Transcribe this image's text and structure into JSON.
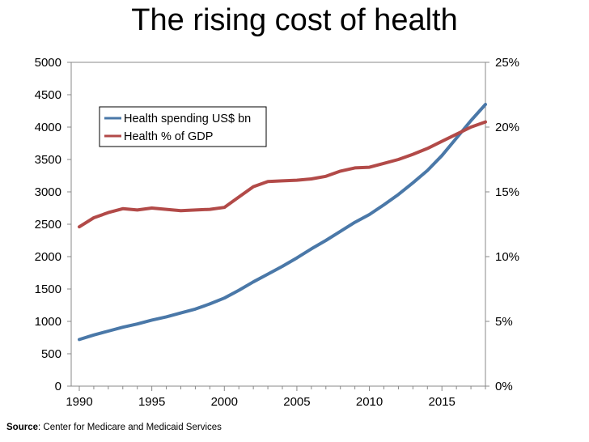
{
  "chart_data": {
    "type": "line",
    "title": "The rising cost of health",
    "x": [
      1990,
      1991,
      1992,
      1993,
      1994,
      1995,
      1996,
      1997,
      1998,
      1999,
      2000,
      2001,
      2002,
      2003,
      2004,
      2005,
      2006,
      2007,
      2008,
      2009,
      2010,
      2011,
      2012,
      2013,
      2014,
      2015,
      2016,
      2017,
      2018
    ],
    "xlim": [
      1990,
      2018
    ],
    "xticks": [
      "1990",
      "1995",
      "2000",
      "2005",
      "2010",
      "2015"
    ],
    "y_left": {
      "ylim": [
        0,
        5000
      ],
      "ticks": [
        "0",
        "500",
        "1000",
        "1500",
        "2000",
        "2500",
        "3000",
        "3500",
        "4000",
        "4500",
        "5000"
      ]
    },
    "y_right": {
      "ylim": [
        0,
        25
      ],
      "ticks": [
        "0%",
        "5%",
        "10%",
        "15%",
        "20%",
        "25%"
      ]
    },
    "series": [
      {
        "name": "Health spending US$ bn",
        "axis": "left",
        "color": "#4a78a8",
        "values": [
          720,
          790,
          850,
          910,
          960,
          1020,
          1070,
          1130,
          1190,
          1270,
          1360,
          1480,
          1610,
          1730,
          1850,
          1980,
          2120,
          2250,
          2390,
          2530,
          2650,
          2800,
          2960,
          3140,
          3330,
          3560,
          3830,
          4100,
          4350
        ]
      },
      {
        "name": "Health % of GDP",
        "axis": "right",
        "color": "#b24a48",
        "values": [
          12.3,
          13.0,
          13.4,
          13.7,
          13.6,
          13.75,
          13.65,
          13.55,
          13.6,
          13.65,
          13.8,
          14.6,
          15.4,
          15.8,
          15.85,
          15.9,
          16.0,
          16.2,
          16.6,
          16.85,
          16.9,
          17.2,
          17.5,
          17.9,
          18.35,
          18.9,
          19.45,
          20.0,
          20.4
        ]
      }
    ],
    "legend": "top-left"
  },
  "source": {
    "label": "Source",
    "text": ": Center for Medicare and Medicaid Services"
  }
}
